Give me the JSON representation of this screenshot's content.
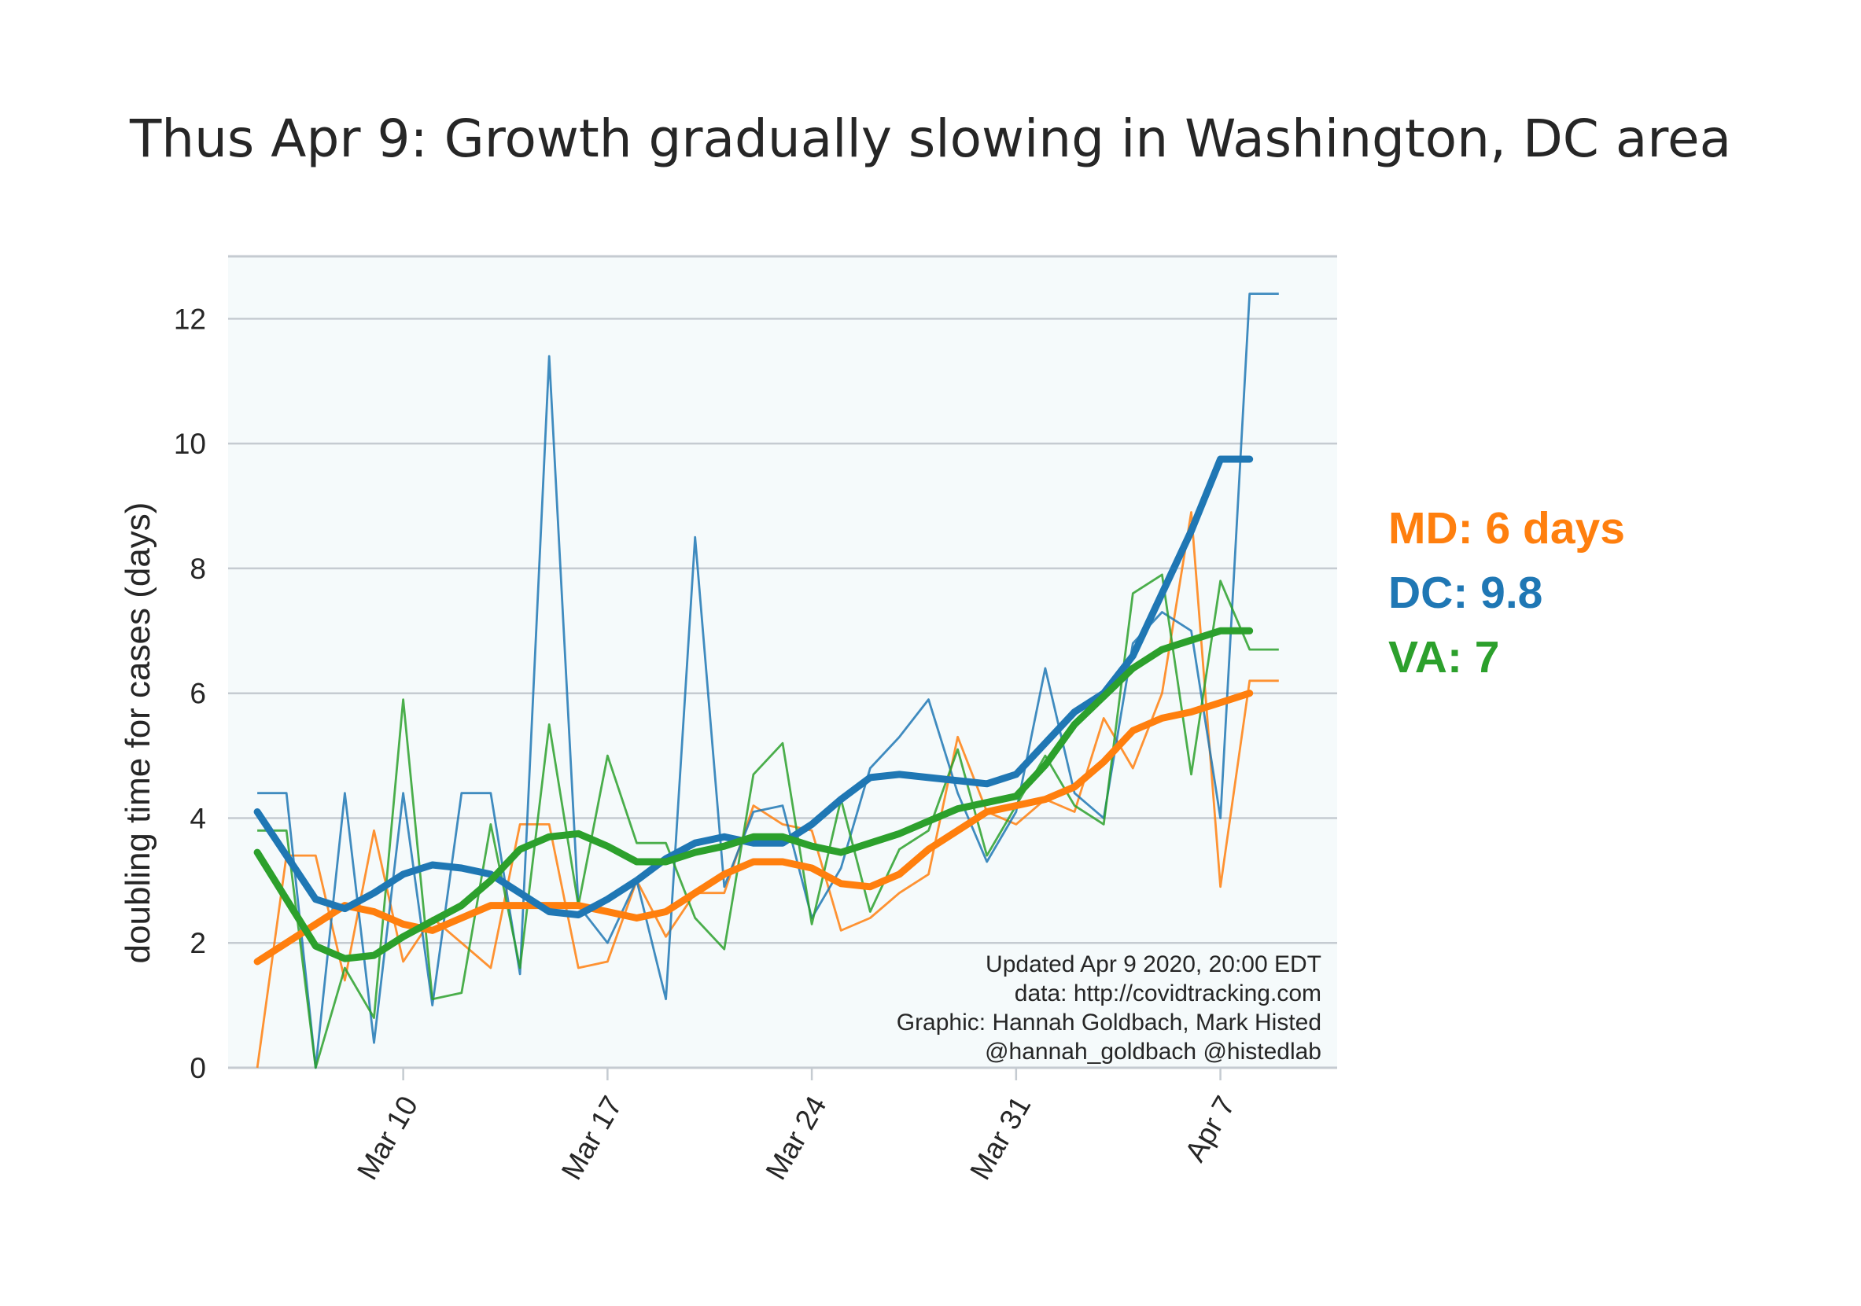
{
  "chart_data": {
    "type": "line",
    "title": "Thus Apr 9: Growth gradually slowing in Washington, DC area",
    "ylabel": "doubling time for cases (days)",
    "xlabel": "",
    "ylim": [
      0,
      13
    ],
    "yticks": [
      "0",
      "2",
      "4",
      "6",
      "8",
      "10",
      "12"
    ],
    "xticks": [
      {
        "date": "2020-03-10",
        "label": "Mar 10"
      },
      {
        "date": "2020-03-17",
        "label": "Mar 17"
      },
      {
        "date": "2020-03-24",
        "label": "Mar 24"
      },
      {
        "date": "2020-03-31",
        "label": "Mar 31"
      },
      {
        "date": "2020-04-07",
        "label": "Apr 7"
      }
    ],
    "xlim": [
      "2020-03-04",
      "2020-04-11"
    ],
    "grid": true,
    "x": [
      "2020-03-05",
      "2020-03-06",
      "2020-03-07",
      "2020-03-08",
      "2020-03-09",
      "2020-03-10",
      "2020-03-11",
      "2020-03-12",
      "2020-03-13",
      "2020-03-14",
      "2020-03-15",
      "2020-03-16",
      "2020-03-17",
      "2020-03-18",
      "2020-03-19",
      "2020-03-20",
      "2020-03-21",
      "2020-03-22",
      "2020-03-23",
      "2020-03-24",
      "2020-03-25",
      "2020-03-26",
      "2020-03-27",
      "2020-03-28",
      "2020-03-29",
      "2020-03-30",
      "2020-03-31",
      "2020-04-01",
      "2020-04-02",
      "2020-04-03",
      "2020-04-04",
      "2020-04-05",
      "2020-04-06",
      "2020-04-07",
      "2020-04-08",
      "2020-04-09"
    ],
    "series": [
      {
        "name": "MD",
        "color": "#ff7f0e",
        "raw": [
          0.0,
          3.4,
          3.4,
          1.4,
          3.8,
          1.7,
          2.4,
          2.0,
          1.6,
          3.9,
          3.9,
          1.6,
          1.7,
          3.0,
          2.1,
          2.8,
          2.8,
          4.2,
          3.9,
          3.8,
          2.2,
          2.4,
          2.8,
          3.1,
          5.3,
          4.1,
          3.9,
          4.3,
          4.1,
          5.6,
          4.8,
          6.0,
          8.9,
          2.9,
          6.2,
          6.2
        ],
        "smooth": [
          1.7,
          2.0,
          2.3,
          2.6,
          2.5,
          2.3,
          2.2,
          2.4,
          2.6,
          2.6,
          2.6,
          2.6,
          2.5,
          2.4,
          2.5,
          2.8,
          3.1,
          3.3,
          3.3,
          3.2,
          2.95,
          2.9,
          3.1,
          3.5,
          3.8,
          4.1,
          4.2,
          4.3,
          4.5,
          4.9,
          5.4,
          5.6,
          5.7,
          5.85,
          6.0,
          6.0
        ]
      },
      {
        "name": "DC",
        "color": "#1f77b4",
        "raw": [
          4.4,
          4.4,
          0.0,
          4.4,
          0.4,
          4.4,
          1.0,
          4.4,
          4.4,
          1.5,
          11.4,
          2.6,
          2.0,
          3.0,
          1.1,
          8.5,
          2.9,
          4.1,
          4.2,
          2.4,
          3.2,
          4.8,
          5.3,
          5.9,
          4.4,
          3.3,
          4.1,
          6.4,
          4.4,
          4.0,
          6.8,
          7.3,
          7.0,
          4.0,
          12.4,
          12.4
        ],
        "smooth": [
          4.1,
          3.4,
          2.7,
          2.55,
          2.8,
          3.1,
          3.25,
          3.2,
          3.1,
          2.8,
          2.5,
          2.45,
          2.7,
          3.0,
          3.35,
          3.6,
          3.7,
          3.6,
          3.6,
          3.9,
          4.3,
          4.65,
          4.7,
          4.65,
          4.6,
          4.55,
          4.7,
          5.2,
          5.7,
          6.0,
          6.6,
          7.6,
          8.6,
          9.75,
          9.75,
          9.75
        ]
      },
      {
        "name": "VA",
        "color": "#2ca02c",
        "raw": [
          3.8,
          3.8,
          0.0,
          1.6,
          0.8,
          5.9,
          1.1,
          1.2,
          3.9,
          1.6,
          5.5,
          2.6,
          5.0,
          3.6,
          3.6,
          2.4,
          1.9,
          4.7,
          5.2,
          2.3,
          4.3,
          2.5,
          3.5,
          3.8,
          5.1,
          3.4,
          4.2,
          5.0,
          4.2,
          3.9,
          7.6,
          7.9,
          4.7,
          7.8,
          6.7,
          6.7
        ],
        "smooth": [
          3.45,
          2.7,
          1.95,
          1.75,
          1.8,
          2.1,
          2.35,
          2.6,
          3.0,
          3.5,
          3.7,
          3.75,
          3.55,
          3.3,
          3.3,
          3.45,
          3.55,
          3.7,
          3.7,
          3.55,
          3.45,
          3.6,
          3.75,
          3.95,
          4.15,
          4.25,
          4.35,
          4.85,
          5.5,
          5.95,
          6.4,
          6.7,
          6.85,
          7.0,
          7.0,
          7.0
        ]
      }
    ],
    "annotations": {
      "legend_labels": [
        {
          "text": "MD: 6 days",
          "color": "#ff7f0e"
        },
        {
          "text": "DC: 9.8",
          "color": "#1f77b4"
        },
        {
          "text": "VA: 7",
          "color": "#2ca02c"
        }
      ],
      "credits": [
        "Updated Apr 9 2020, 20:00 EDT",
        "data: http://covidtracking.com",
        "Graphic: Hannah Goldbach, Mark Histed",
        "@hannah_goldbach @histedlab"
      ]
    },
    "style": {
      "plot_background": "#f5fafb",
      "grid_color": "#c5cbd1",
      "text_color": "#262626"
    }
  }
}
